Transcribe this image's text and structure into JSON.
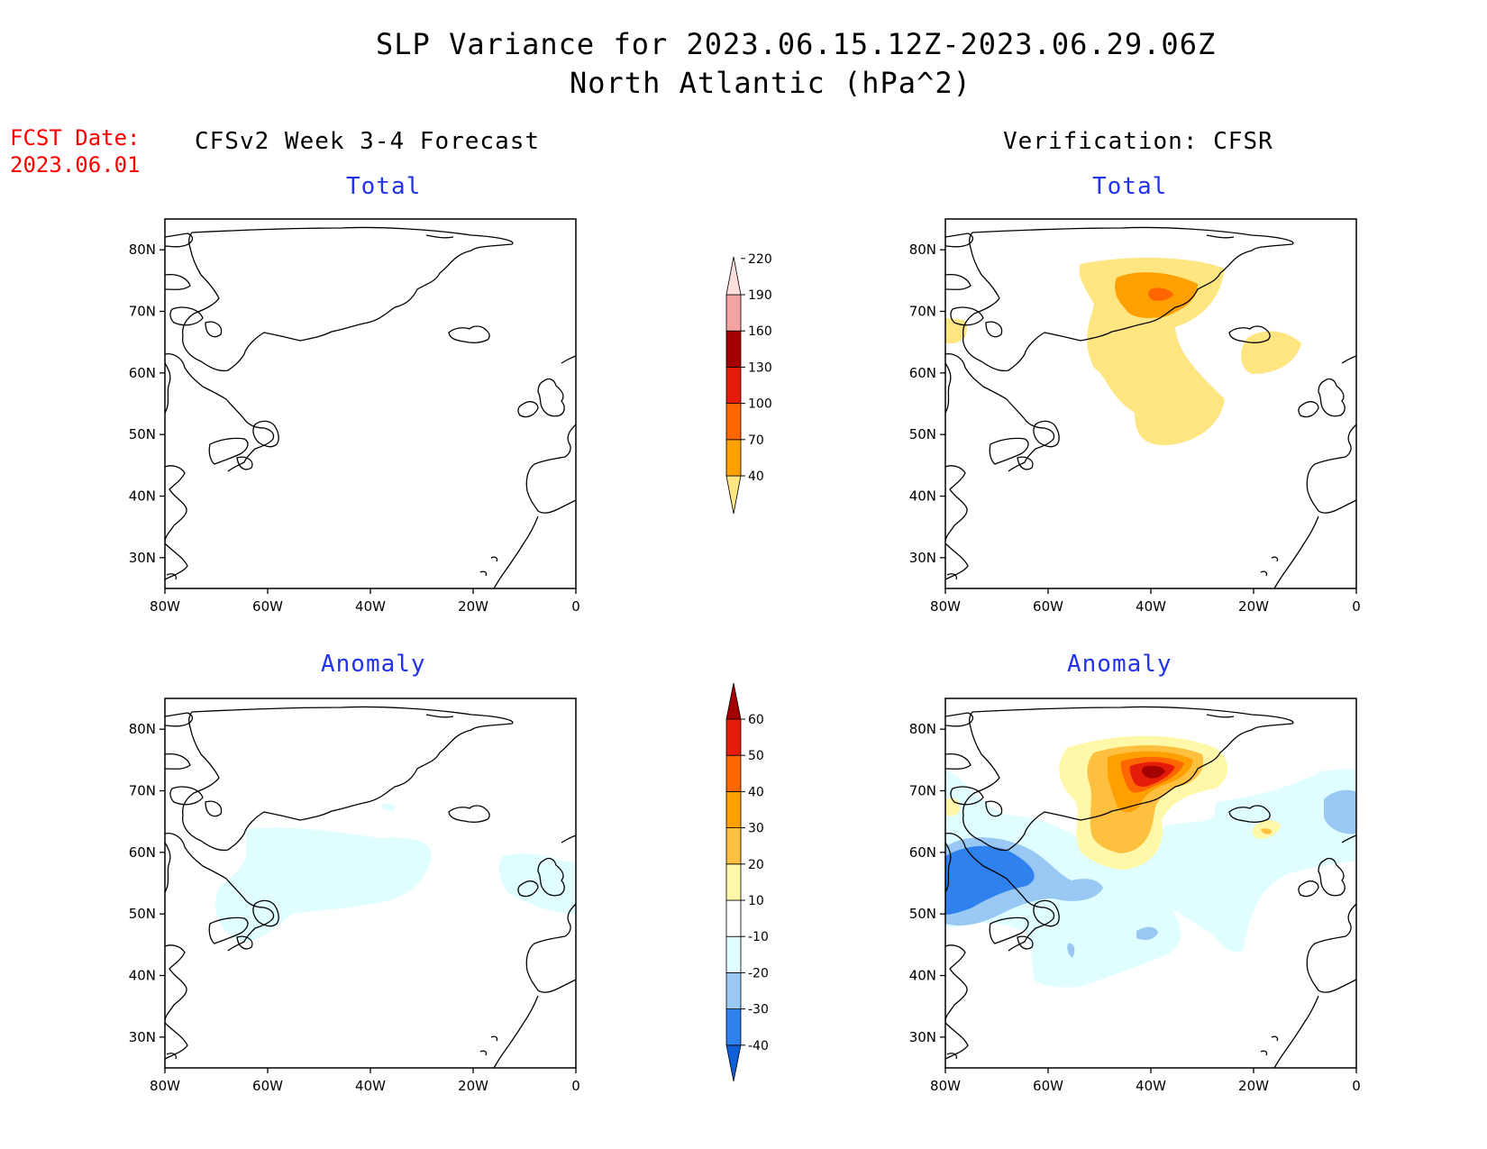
{
  "header": {
    "title": "SLP Variance for 2023.06.15.12Z-2023.06.29.06Z",
    "subtitle": "North Atlantic (hPa^2)"
  },
  "fcst": {
    "label": "FCST Date:",
    "date": "2023.06.01"
  },
  "columns": {
    "left": "CFSv2 Week 3-4 Forecast",
    "right": "Verification: CFSR"
  },
  "panels": {
    "forecast_total": "Total",
    "verif_total": "Total",
    "forecast_anomaly": "Anomaly",
    "verif_anomaly": "Anomaly"
  },
  "axes": {
    "lon_labels": [
      "80W",
      "60W",
      "40W",
      "20W",
      "0"
    ],
    "lat_labels": [
      "80N",
      "70N",
      "60N",
      "50N",
      "40N",
      "30N"
    ]
  },
  "colorbars": {
    "total": {
      "levels": [
        "40",
        "70",
        "100",
        "130",
        "160",
        "190",
        "220"
      ],
      "colors": [
        "#ffe680",
        "#ffa000",
        "#ff6600",
        "#e61c0a",
        "#a50000",
        "#f4a3a3",
        "#fde0dd"
      ]
    },
    "anomaly": {
      "levels": [
        "-40",
        "-30",
        "-20",
        "-10",
        "10",
        "20",
        "30",
        "40",
        "50",
        "60"
      ],
      "colors": [
        "#0f5fd6",
        "#2f82ee",
        "#99c8f5",
        "#e0fdff",
        "#ffffff",
        "#fff8a8",
        "#ffc040",
        "#ffa000",
        "#ff6600",
        "#e61c0a",
        "#a50000"
      ]
    }
  }
}
